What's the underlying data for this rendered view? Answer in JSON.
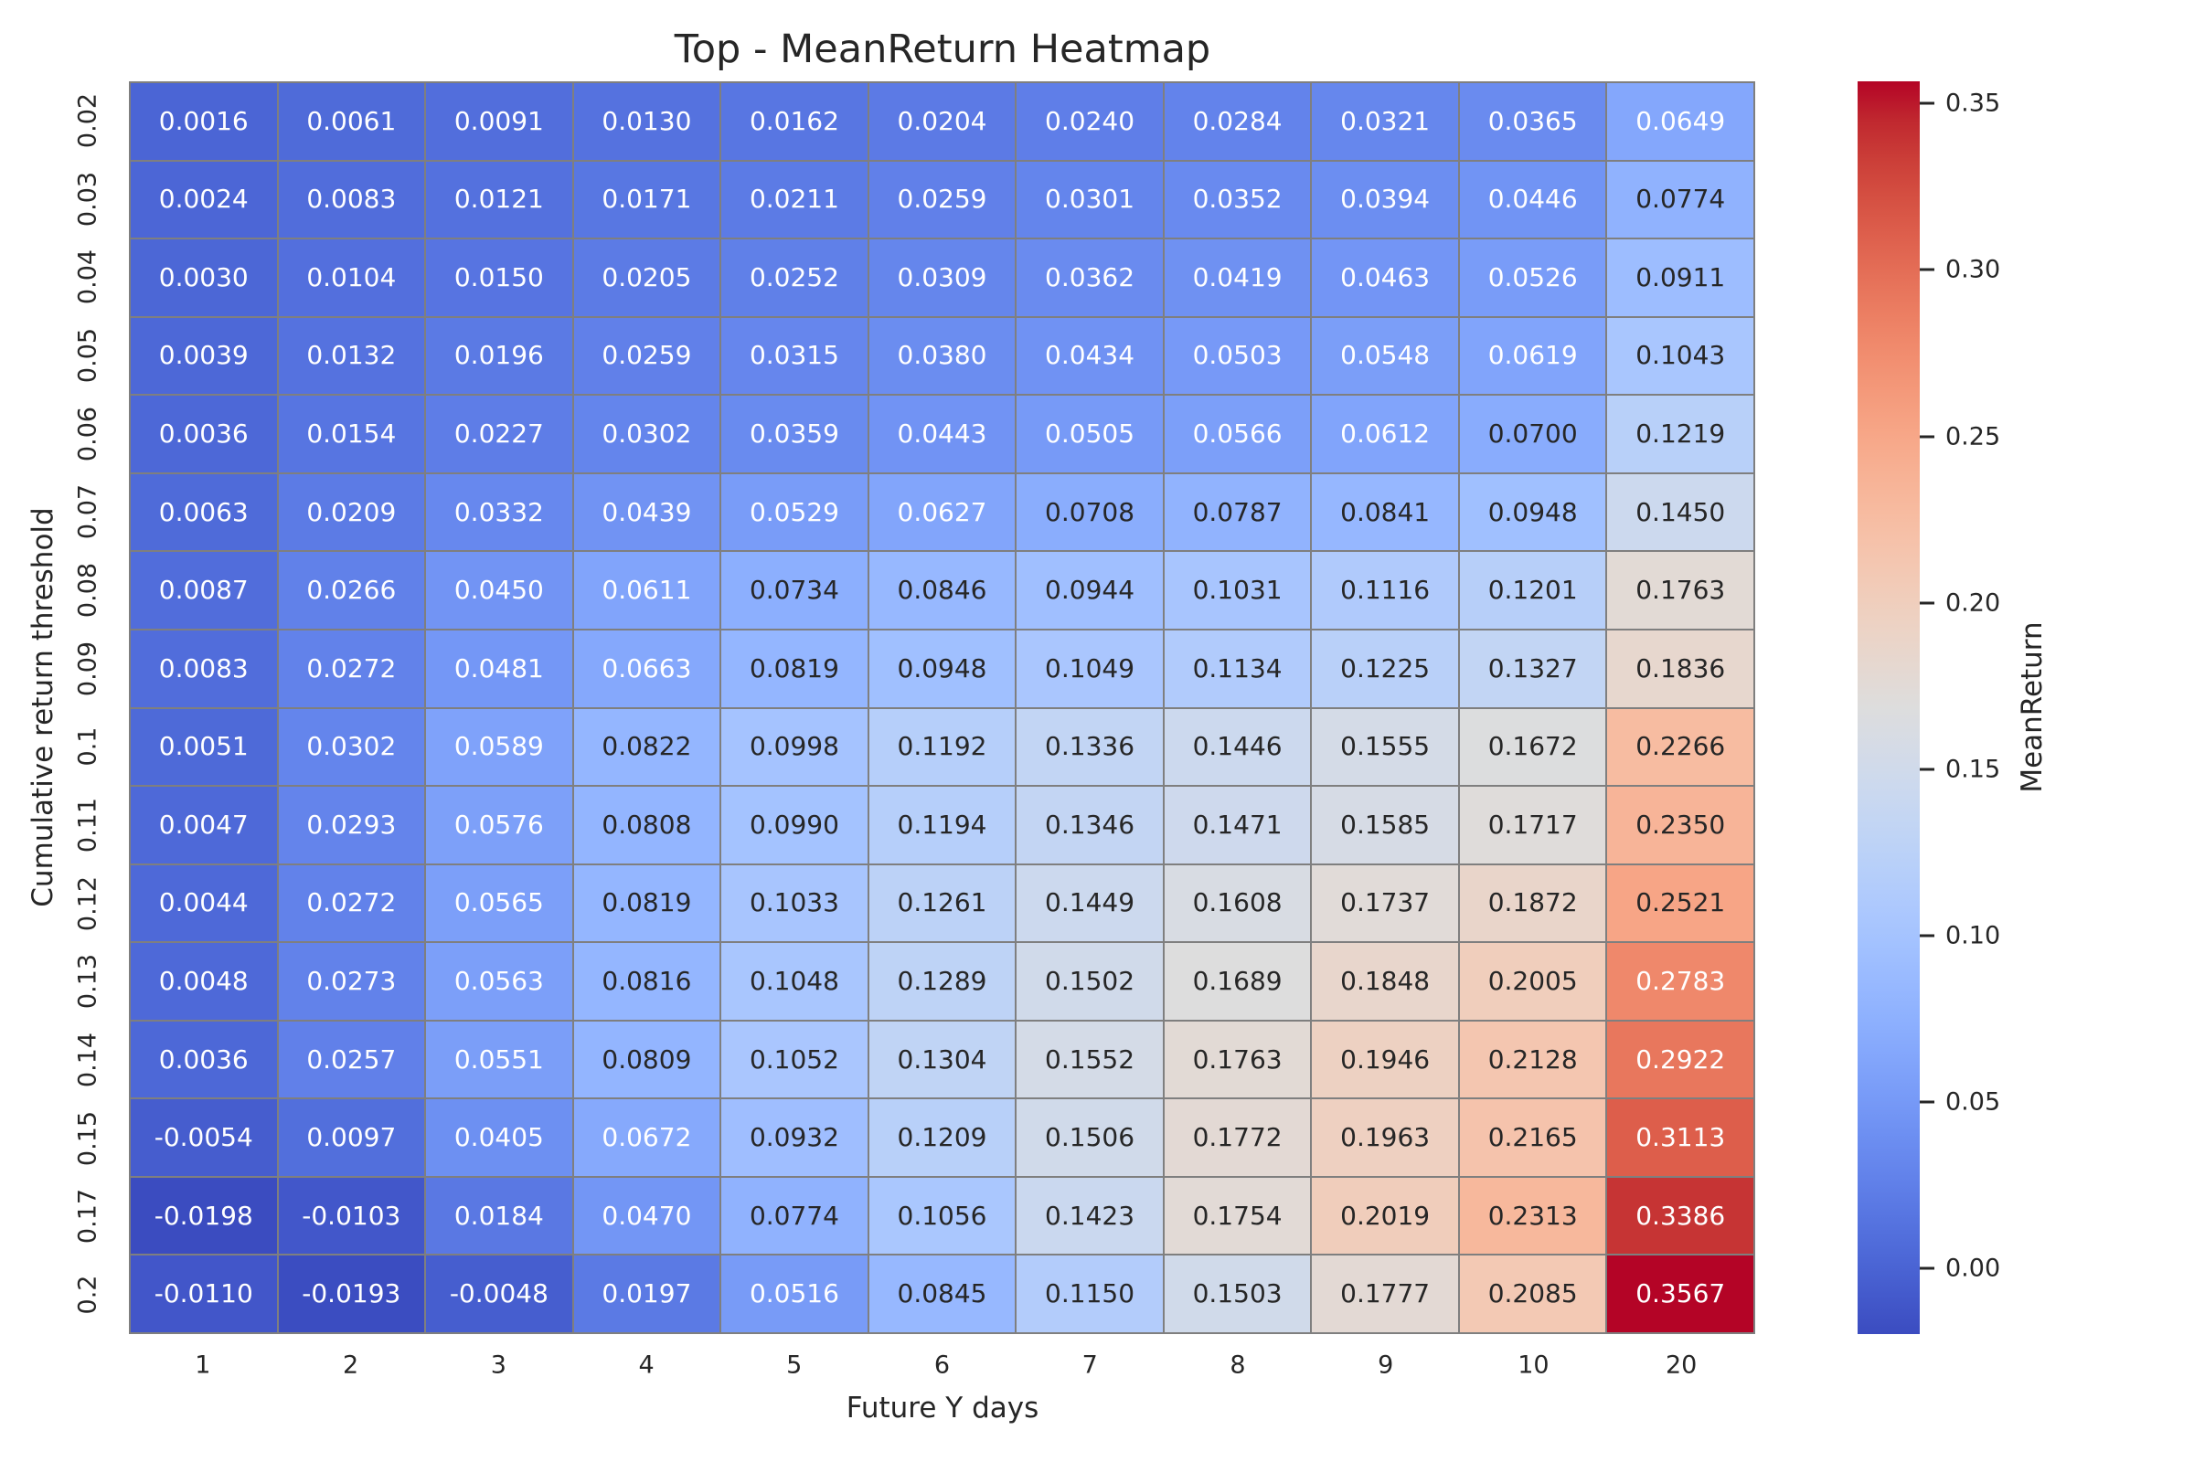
{
  "chart_data": {
    "type": "heatmap",
    "title": "Top - MeanReturn Heatmap",
    "xlabel": "Future Y days",
    "ylabel": "Cumulative return threshold",
    "x_ticklabels": [
      "1",
      "2",
      "3",
      "4",
      "5",
      "6",
      "7",
      "8",
      "9",
      "10",
      "20"
    ],
    "y_ticklabels": [
      "0.02",
      "0.03",
      "0.04",
      "0.05",
      "0.06",
      "0.07",
      "0.08",
      "0.09",
      "0.1",
      "0.11",
      "0.12",
      "0.13",
      "0.14",
      "0.15",
      "0.17",
      "0.2"
    ],
    "values": [
      [
        0.0016,
        0.0061,
        0.0091,
        0.013,
        0.0162,
        0.0204,
        0.024,
        0.0284,
        0.0321,
        0.0365,
        0.0649
      ],
      [
        0.0024,
        0.0083,
        0.0121,
        0.0171,
        0.0211,
        0.0259,
        0.0301,
        0.0352,
        0.0394,
        0.0446,
        0.0774
      ],
      [
        0.003,
        0.0104,
        0.015,
        0.0205,
        0.0252,
        0.0309,
        0.0362,
        0.0419,
        0.0463,
        0.0526,
        0.0911
      ],
      [
        0.0039,
        0.0132,
        0.0196,
        0.0259,
        0.0315,
        0.038,
        0.0434,
        0.0503,
        0.0548,
        0.0619,
        0.1043
      ],
      [
        0.0036,
        0.0154,
        0.0227,
        0.0302,
        0.0359,
        0.0443,
        0.0505,
        0.0566,
        0.0612,
        0.07,
        0.1219
      ],
      [
        0.0063,
        0.0209,
        0.0332,
        0.0439,
        0.0529,
        0.0627,
        0.0708,
        0.0787,
        0.0841,
        0.0948,
        0.145
      ],
      [
        0.0087,
        0.0266,
        0.045,
        0.0611,
        0.0734,
        0.0846,
        0.0944,
        0.1031,
        0.1116,
        0.1201,
        0.1763
      ],
      [
        0.0083,
        0.0272,
        0.0481,
        0.0663,
        0.0819,
        0.0948,
        0.1049,
        0.1134,
        0.1225,
        0.1327,
        0.1836
      ],
      [
        0.0051,
        0.0302,
        0.0589,
        0.0822,
        0.0998,
        0.1192,
        0.1336,
        0.1446,
        0.1555,
        0.1672,
        0.2266
      ],
      [
        0.0047,
        0.0293,
        0.0576,
        0.0808,
        0.099,
        0.1194,
        0.1346,
        0.1471,
        0.1585,
        0.1717,
        0.235
      ],
      [
        0.0044,
        0.0272,
        0.0565,
        0.0819,
        0.1033,
        0.1261,
        0.1449,
        0.1608,
        0.1737,
        0.1872,
        0.2521
      ],
      [
        0.0048,
        0.0273,
        0.0563,
        0.0816,
        0.1048,
        0.1289,
        0.1502,
        0.1689,
        0.1848,
        0.2005,
        0.2783
      ],
      [
        0.0036,
        0.0257,
        0.0551,
        0.0809,
        0.1052,
        0.1304,
        0.1552,
        0.1763,
        0.1946,
        0.2128,
        0.2922
      ],
      [
        -0.0054,
        0.0097,
        0.0405,
        0.0672,
        0.0932,
        0.1209,
        0.1506,
        0.1772,
        0.1963,
        0.2165,
        0.3113
      ],
      [
        -0.0198,
        -0.0103,
        0.0184,
        0.047,
        0.0774,
        0.1056,
        0.1423,
        0.1754,
        0.2019,
        0.2313,
        0.3386
      ],
      [
        -0.011,
        -0.0193,
        -0.0048,
        0.0197,
        0.0516,
        0.0845,
        0.115,
        0.1503,
        0.1777,
        0.2085,
        0.3567
      ]
    ],
    "value_format_decimals": 4,
    "vmin": -0.0198,
    "vmax": 0.3567,
    "grid": true,
    "gridline_color": "#7f7f7f",
    "annotation_text_dark": "#262626",
    "annotation_text_light": "#ffffff",
    "colormap": {
      "name": "coolwarm",
      "anchors": [
        "#3b4cc0",
        "#445acc",
        "#4d68d7",
        "#5775e1",
        "#6282ea",
        "#6c8ef1",
        "#779af7",
        "#82a5fb",
        "#8db0fe",
        "#98b9ff",
        "#a3c2ff",
        "#aec9fd",
        "#b8d0f9",
        "#c2d5f4",
        "#ccd9ee",
        "#d5dbe6",
        "#dddddd",
        "#e5d8d1",
        "#ecd3c5",
        "#f1ccb9",
        "#f5c4ad",
        "#f7bba0",
        "#f7b194",
        "#f7a687",
        "#f49a7b",
        "#f18d6f",
        "#ec7f63",
        "#e57058",
        "#de604d",
        "#d55042",
        "#cb3e38",
        "#c0282f",
        "#b40426"
      ]
    },
    "colorbar": {
      "label": "MeanReturn",
      "position": "right",
      "tick_labels": [
        "0.35",
        "0.30",
        "0.25",
        "0.20",
        "0.15",
        "0.10",
        "0.05",
        "0.00"
      ],
      "tick_values": [
        0.35,
        0.3,
        0.25,
        0.2,
        0.15,
        0.1,
        0.05,
        0.0
      ]
    }
  }
}
